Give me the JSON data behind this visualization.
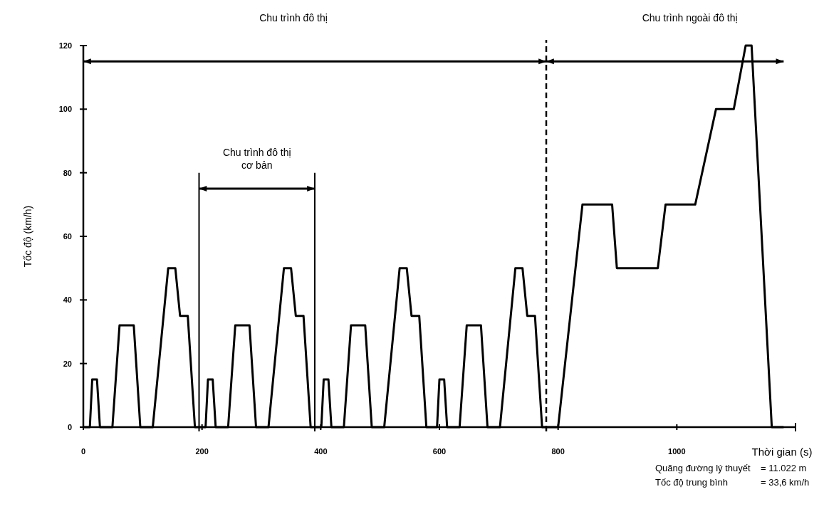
{
  "chart_data": {
    "type": "line",
    "xlabel": "Thời gian (s)",
    "ylabel": "Tốc độ (km/h)",
    "x": [
      0,
      11,
      15,
      23,
      28,
      49,
      61,
      85,
      96,
      117,
      143,
      155,
      163,
      176,
      188,
      195,
      206,
      210,
      218,
      223,
      244,
      256,
      280,
      291,
      312,
      338,
      350,
      358,
      371,
      383,
      390,
      401,
      405,
      413,
      418,
      439,
      451,
      475,
      486,
      507,
      533,
      545,
      553,
      566,
      578,
      585,
      596,
      600,
      608,
      613,
      634,
      646,
      670,
      681,
      702,
      728,
      740,
      748,
      761,
      773,
      780,
      800,
      841,
      891,
      899,
      968,
      981,
      1031,
      1066,
      1096,
      1116,
      1126,
      1160,
      1180
    ],
    "series": [
      {
        "color": "#000000",
        "values": [
          0,
          0,
          15,
          15,
          0,
          0,
          32,
          32,
          0,
          0,
          50,
          50,
          35,
          35,
          0,
          0,
          0,
          15,
          15,
          0,
          0,
          32,
          32,
          0,
          0,
          50,
          50,
          35,
          35,
          0,
          0,
          0,
          15,
          15,
          0,
          0,
          32,
          32,
          0,
          0,
          50,
          50,
          35,
          35,
          0,
          0,
          0,
          15,
          15,
          0,
          0,
          32,
          32,
          0,
          0,
          50,
          50,
          35,
          35,
          0,
          0,
          0,
          70,
          70,
          50,
          50,
          70,
          70,
          100,
          100,
          120,
          120,
          0,
          0
        ]
      }
    ],
    "xlim": [
      0,
      1200
    ],
    "ylim": [
      0,
      120
    ],
    "xticks": [
      0,
      200,
      400,
      600,
      800,
      1000
    ],
    "yticks": [
      0,
      20,
      40,
      60,
      80,
      100,
      120
    ],
    "grid": false,
    "line_style": "solid",
    "ref_lines": [
      {
        "axis": "x",
        "value": 195,
        "line_style": "solid"
      },
      {
        "axis": "x",
        "value": 390,
        "line_style": "solid"
      },
      {
        "axis": "x",
        "value": 780,
        "line_style": "dashed"
      }
    ],
    "annotations": [
      "Chu trình đô thị",
      "Chu trình ngoài đô thị",
      "Chu trình đô thị cơ bản",
      "Quãng đường lý thuyết = 11.022 m",
      "Tốc độ trung bình = 33,6 km/h"
    ]
  }
}
